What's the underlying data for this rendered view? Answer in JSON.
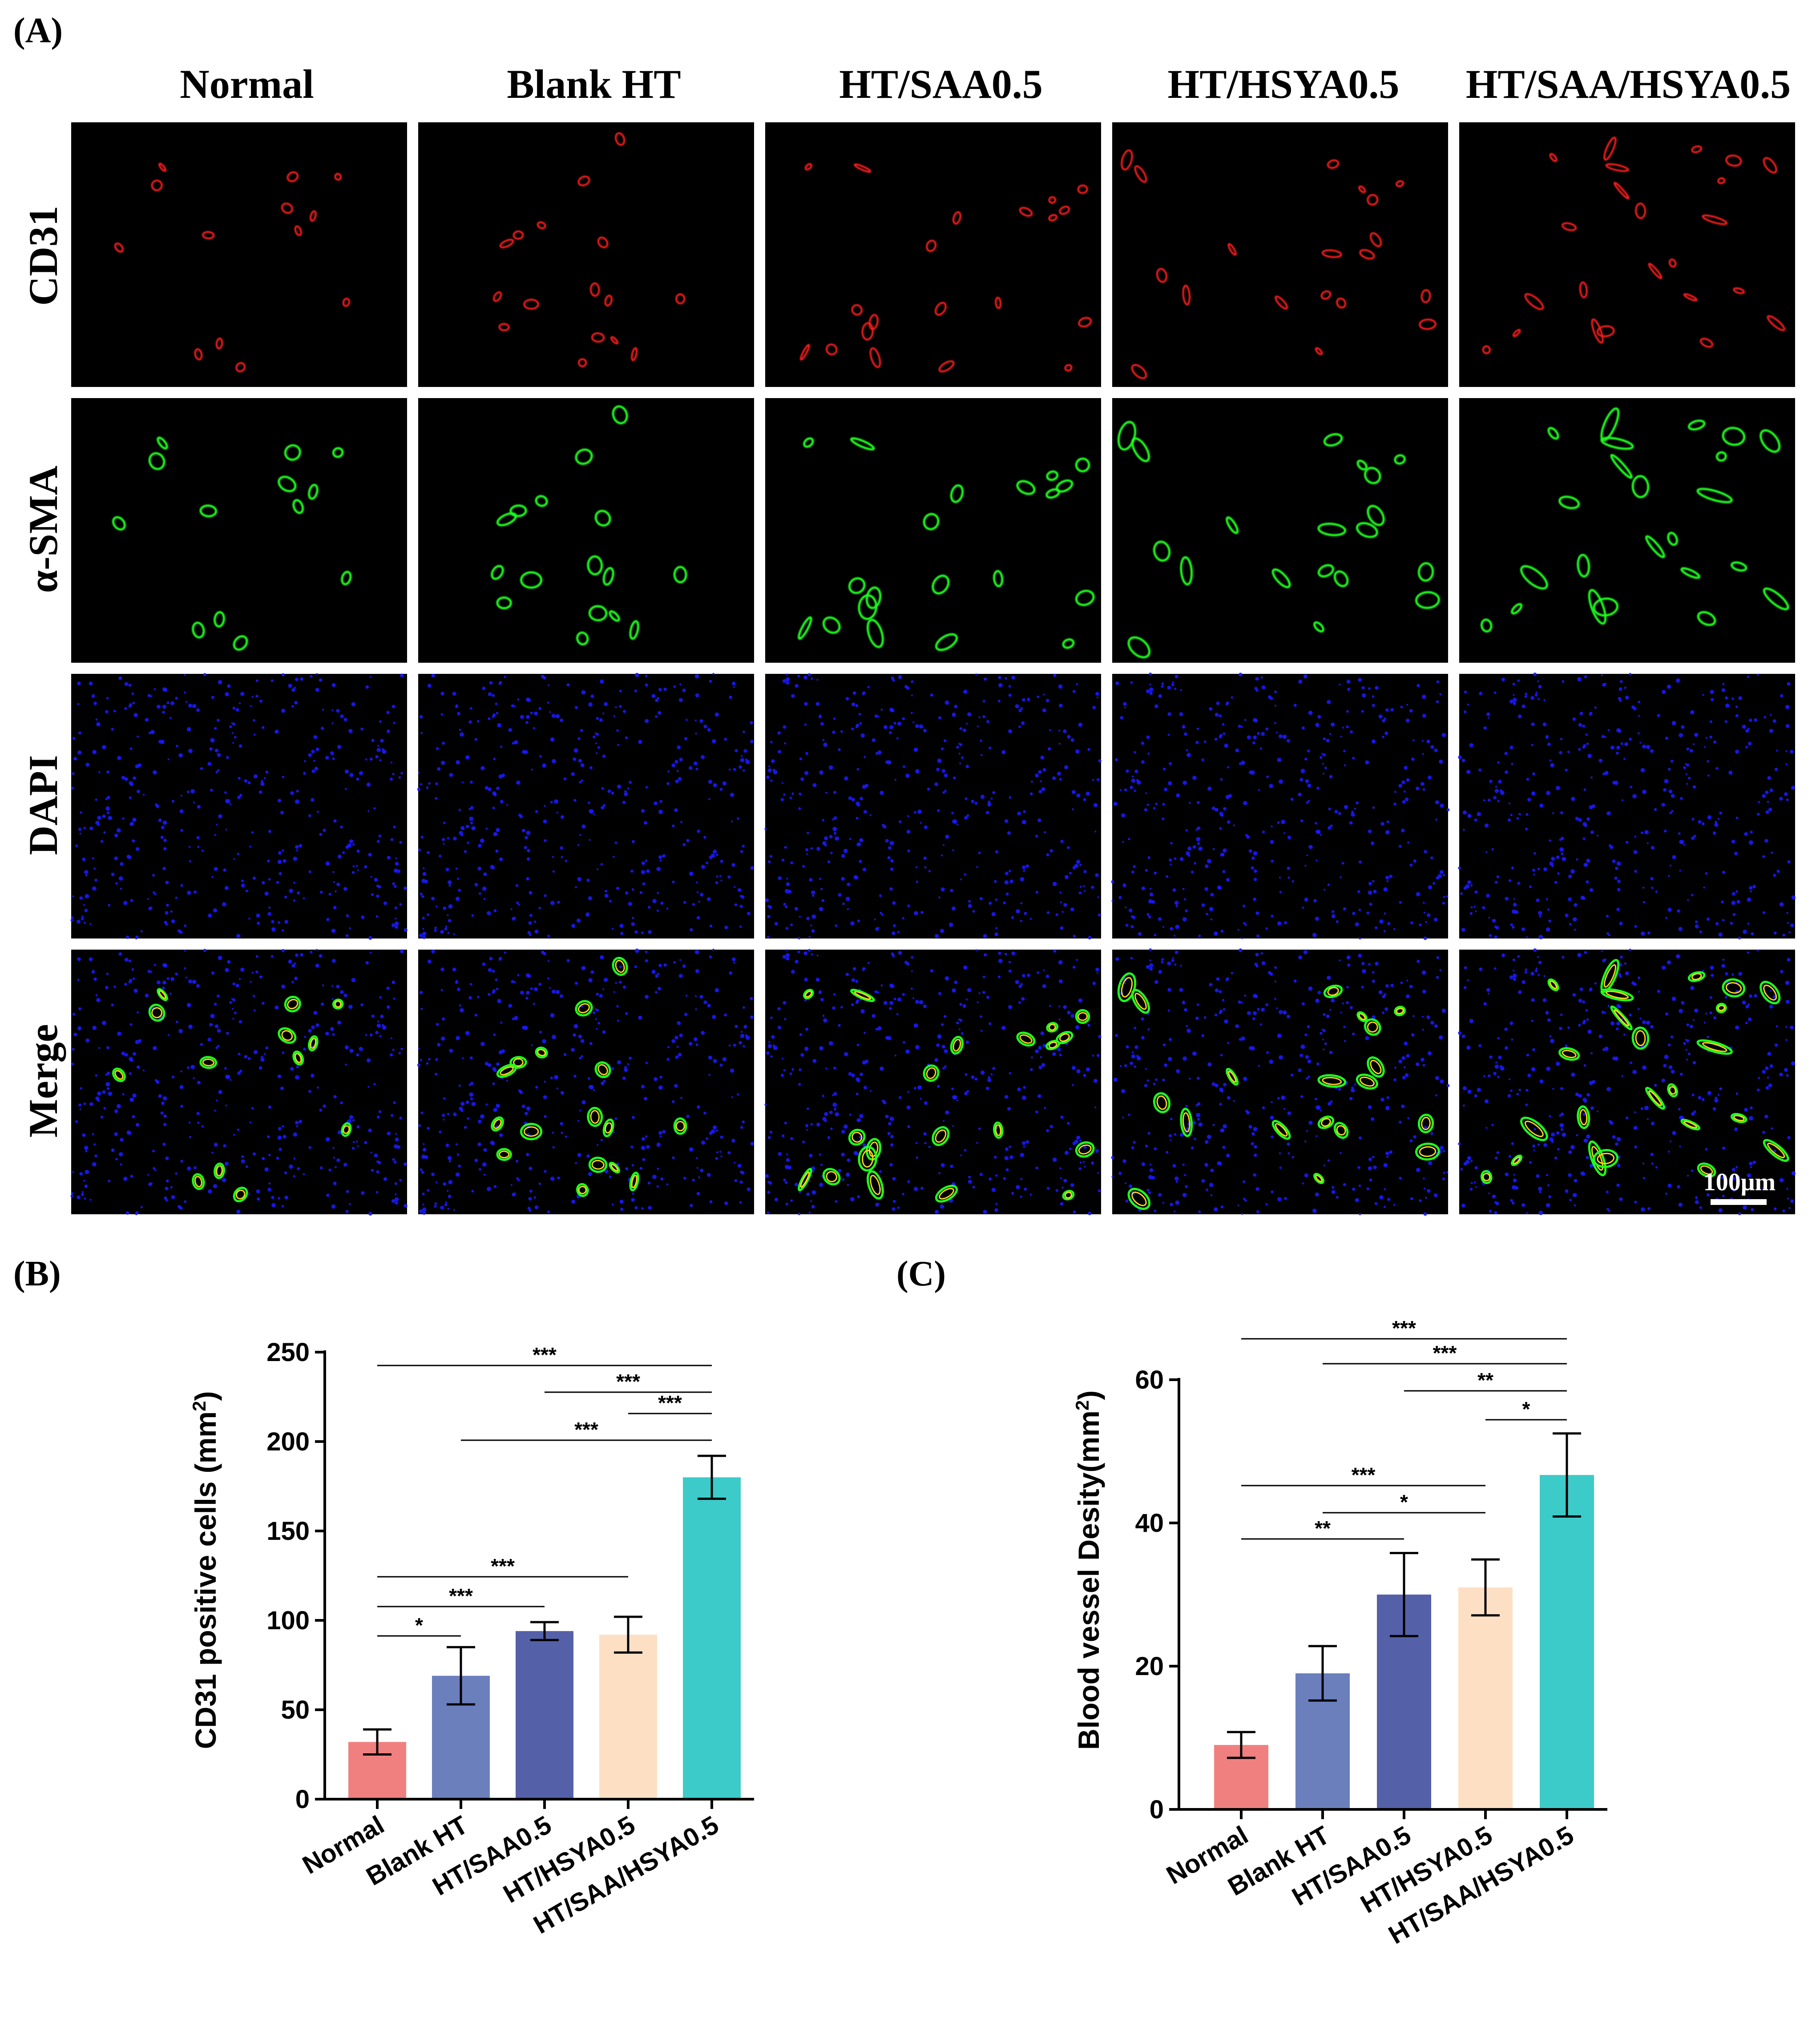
{
  "panel_a": {
    "label": "(A)",
    "columns": [
      "Normal",
      "Blank HT",
      "HT/SAA0.5",
      "HT/HSYA0.5",
      "HT/SAA/HSYA0.5"
    ],
    "rows": [
      "CD31",
      "α-SMA",
      "DAPI",
      "Merge"
    ],
    "scale_bar_label": "100μm",
    "colors": {
      "CD31": "#ff1a1a",
      "α-SMA": "#1eff1e",
      "DAPI": "#1a1aff",
      "background": "#000000"
    }
  },
  "chart_data": [
    {
      "panel_label": "(B)",
      "type": "bar",
      "categories": [
        "Normal",
        "Blank HT",
        "HT/SAA0.5",
        "HT/HSYA0.5",
        "HT/SAA/HSYA0.5"
      ],
      "values": [
        32,
        69,
        94,
        92,
        180
      ],
      "errors": [
        7,
        16,
        5,
        10,
        12
      ],
      "colors": [
        "#f08080",
        "#6b7fbd",
        "#5460a8",
        "#fde0c4",
        "#3ccbc9"
      ],
      "title": "",
      "xlabel": "",
      "ylabel": "CD31 positive cells (mm",
      "ylabel_superscript": "2",
      "ylabel_end": ")",
      "ylim": [
        0,
        250
      ],
      "yticks": [
        0,
        50,
        100,
        150,
        200,
        250
      ],
      "significance": [
        {
          "from": 0,
          "to": 4,
          "label": "***"
        },
        {
          "from": 2,
          "to": 4,
          "label": "***"
        },
        {
          "from": 3,
          "to": 4,
          "label": "***"
        },
        {
          "from": 1,
          "to": 4,
          "label": "***"
        },
        {
          "from": 0,
          "to": 3,
          "label": "***"
        },
        {
          "from": 0,
          "to": 2,
          "label": "***"
        },
        {
          "from": 0,
          "to": 1,
          "label": "*"
        }
      ]
    },
    {
      "panel_label": "(C)",
      "type": "bar",
      "categories": [
        "Normal",
        "Blank HT",
        "HT/SAA0.5",
        "HT/HSYA0.5",
        "HT/SAA/HSYA0.5"
      ],
      "values": [
        9,
        19,
        30,
        31,
        46.7
      ],
      "errors": [
        1.8,
        3.8,
        5.8,
        3.9,
        5.8
      ],
      "colors": [
        "#f08080",
        "#6b7fbd",
        "#5460a8",
        "#fde0c4",
        "#3ccbc9"
      ],
      "title": "",
      "xlabel": "",
      "ylabel": "Blood vessel Desity(mm",
      "ylabel_superscript": "2",
      "ylabel_end": ")",
      "ylim": [
        0,
        60
      ],
      "yticks": [
        0,
        20,
        40,
        60
      ],
      "significance": [
        {
          "from": 0,
          "to": 4,
          "label": "***"
        },
        {
          "from": 1,
          "to": 4,
          "label": "***"
        },
        {
          "from": 2,
          "to": 4,
          "label": "**"
        },
        {
          "from": 3,
          "to": 4,
          "label": "*"
        },
        {
          "from": 0,
          "to": 3,
          "label": "***"
        },
        {
          "from": 1,
          "to": 3,
          "label": "*"
        },
        {
          "from": 0,
          "to": 2,
          "label": "**"
        }
      ]
    }
  ]
}
